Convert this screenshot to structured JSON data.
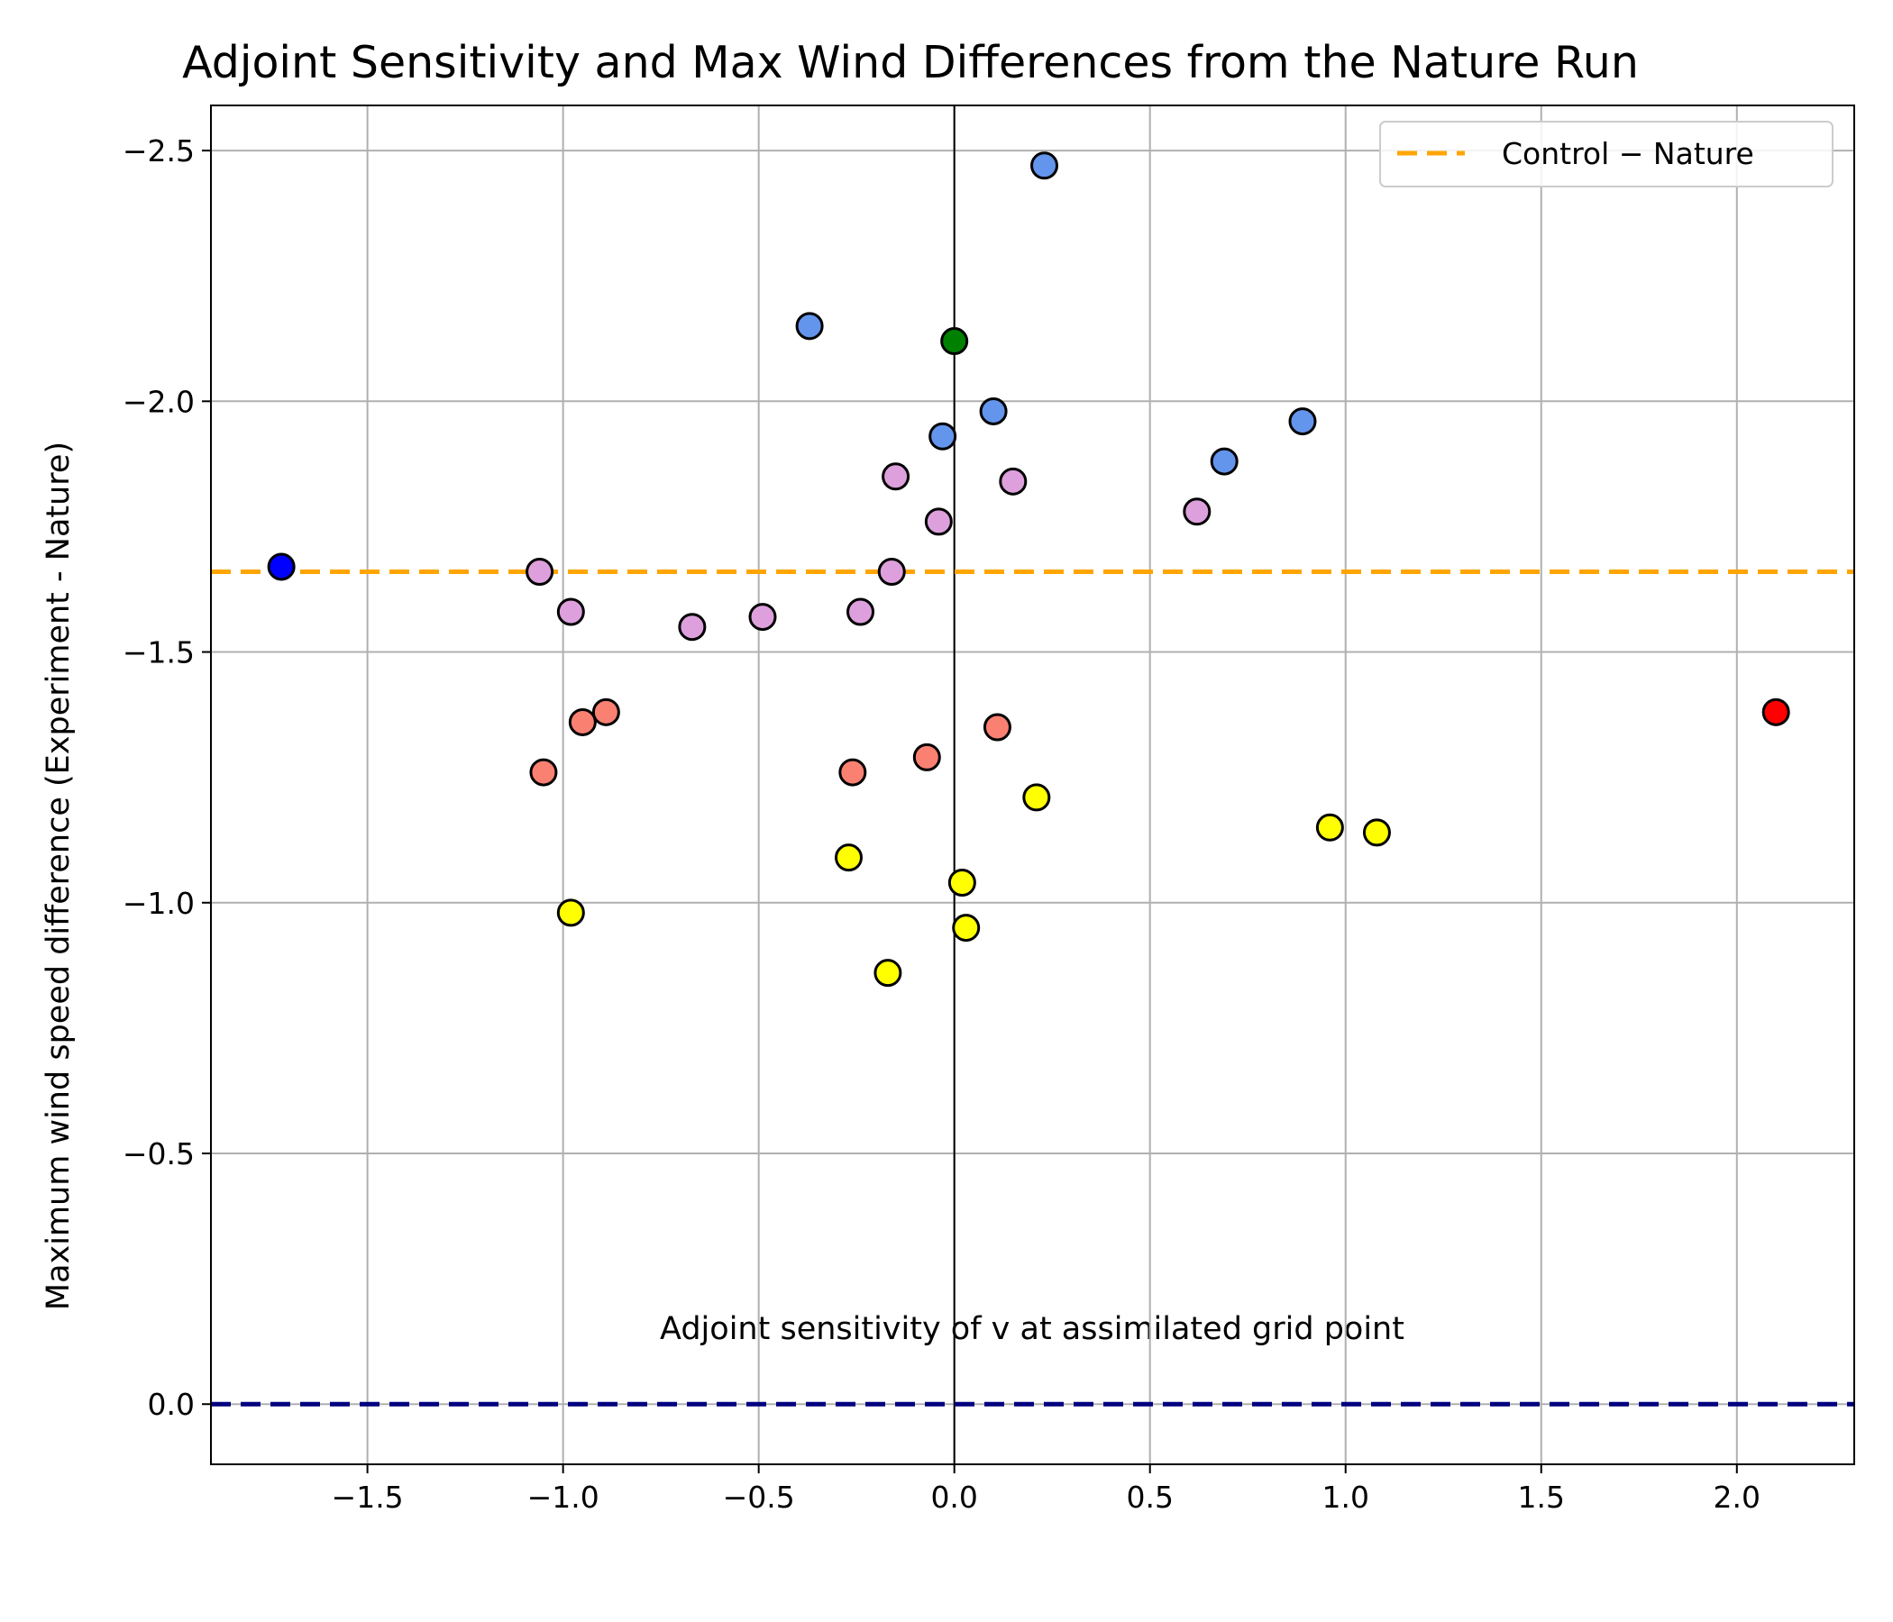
{
  "chart_data": {
    "type": "scatter",
    "title": "Adjoint Sensitivity and Max Wind Differences from the Nature Run",
    "xlabel": "Adjoint sensitivity of v at assimilated grid point",
    "ylabel": "Maximum wind speed difference (Experiment - Nature)",
    "xlim": [
      -1.9,
      2.3
    ],
    "ylim": [
      0.12,
      -2.59
    ],
    "y_inverted": true,
    "grid": true,
    "xticks": [
      -1.5,
      -1.0,
      -0.5,
      0.0,
      0.5,
      1.0,
      1.5,
      2.0
    ],
    "xtick_labels": [
      "−1.5",
      "−1.0",
      "−0.5",
      "0.0",
      "0.5",
      "1.0",
      "1.5",
      "2.0"
    ],
    "yticks": [
      -2.5,
      -2.0,
      -1.5,
      -1.0,
      -0.5,
      0.0
    ],
    "ytick_labels": [
      "−2.5",
      "−2.0",
      "−1.5",
      "−1.0",
      "−0.5",
      "0.0"
    ],
    "reference_lines": [
      {
        "orientation": "vertical",
        "value": 0.0,
        "color": "#000000",
        "style": "solid"
      },
      {
        "orientation": "horizontal",
        "value": 0.0,
        "color": "#000080",
        "style": "dashed"
      },
      {
        "orientation": "horizontal",
        "value": -1.66,
        "color": "#ffa500",
        "style": "dashed",
        "legend": "Control − Nature"
      }
    ],
    "legend": {
      "position": "top-right",
      "entries": [
        {
          "label": "Control − Nature",
          "color": "#ffa500",
          "style": "dashed"
        }
      ]
    },
    "series": [
      {
        "name": "blue-cornflower",
        "color": "#6495ed",
        "points": [
          {
            "x": 0.23,
            "y": -2.47
          },
          {
            "x": -0.37,
            "y": -2.15
          },
          {
            "x": 0.1,
            "y": -1.98
          },
          {
            "x": -0.03,
            "y": -1.93
          },
          {
            "x": 0.89,
            "y": -1.96
          },
          {
            "x": 0.69,
            "y": -1.88
          }
        ]
      },
      {
        "name": "plum",
        "color": "#dda0dd",
        "points": [
          {
            "x": -0.15,
            "y": -1.85
          },
          {
            "x": 0.15,
            "y": -1.84
          },
          {
            "x": -0.04,
            "y": -1.76
          },
          {
            "x": 0.62,
            "y": -1.78
          },
          {
            "x": -1.06,
            "y": -1.66
          },
          {
            "x": -0.16,
            "y": -1.66
          },
          {
            "x": -0.98,
            "y": -1.58
          },
          {
            "x": -0.24,
            "y": -1.58
          },
          {
            "x": -0.67,
            "y": -1.55
          },
          {
            "x": -0.49,
            "y": -1.57
          }
        ]
      },
      {
        "name": "salmon",
        "color": "#fa8072",
        "points": [
          {
            "x": -0.89,
            "y": -1.38
          },
          {
            "x": -0.95,
            "y": -1.36
          },
          {
            "x": -1.05,
            "y": -1.26
          },
          {
            "x": 0.11,
            "y": -1.35
          },
          {
            "x": -0.26,
            "y": -1.26
          },
          {
            "x": -0.07,
            "y": -1.29
          }
        ]
      },
      {
        "name": "yellow",
        "color": "#ffff00",
        "points": [
          {
            "x": 0.21,
            "y": -1.21
          },
          {
            "x": 0.96,
            "y": -1.15
          },
          {
            "x": 1.08,
            "y": -1.14
          },
          {
            "x": -0.27,
            "y": -1.09
          },
          {
            "x": 0.02,
            "y": -1.04
          },
          {
            "x": -0.98,
            "y": -0.98
          },
          {
            "x": 0.03,
            "y": -0.95
          },
          {
            "x": -0.17,
            "y": -0.86
          }
        ]
      },
      {
        "name": "green",
        "color": "#008000",
        "points": [
          {
            "x": 0.0,
            "y": -2.12
          }
        ]
      },
      {
        "name": "blue",
        "color": "#0000ff",
        "points": [
          {
            "x": -1.72,
            "y": -1.67
          }
        ]
      },
      {
        "name": "red",
        "color": "#ff0000",
        "points": [
          {
            "x": 2.1,
            "y": -1.38
          }
        ]
      }
    ]
  }
}
